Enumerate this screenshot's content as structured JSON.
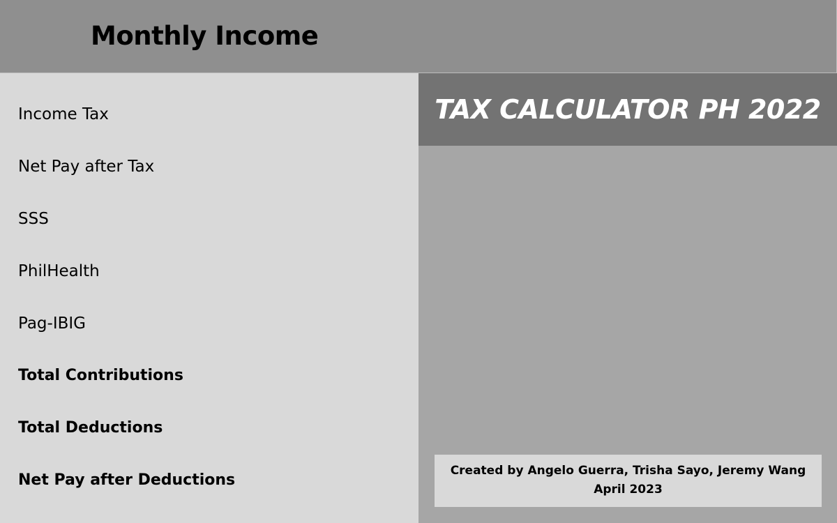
{
  "header": {
    "title": "Monthly Income"
  },
  "rows": [
    {
      "label": "Income Tax",
      "bold": false
    },
    {
      "label": "Net Pay after Tax",
      "bold": false
    },
    {
      "label": "SSS",
      "bold": false
    },
    {
      "label": "PhilHealth",
      "bold": false
    },
    {
      "label": "Pag-IBIG",
      "bold": false
    },
    {
      "label": "Total Contributions",
      "bold": true
    },
    {
      "label": "Total Deductions",
      "bold": true
    },
    {
      "label": "Net Pay after Deductions",
      "bold": true
    }
  ],
  "banner": {
    "title": "TAX CALCULATOR PH 2022"
  },
  "credits": {
    "authors": "Created by Angelo Guerra, Trisha Sayo, Jeremy Wang",
    "date": "April 2023"
  },
  "colors": {
    "header_bg": "#8f8f8f",
    "left_panel_bg": "#d9d9d9",
    "right_panel_bg": "#a6a6a6",
    "banner_bg": "#737373",
    "banner_text": "#ffffff"
  }
}
